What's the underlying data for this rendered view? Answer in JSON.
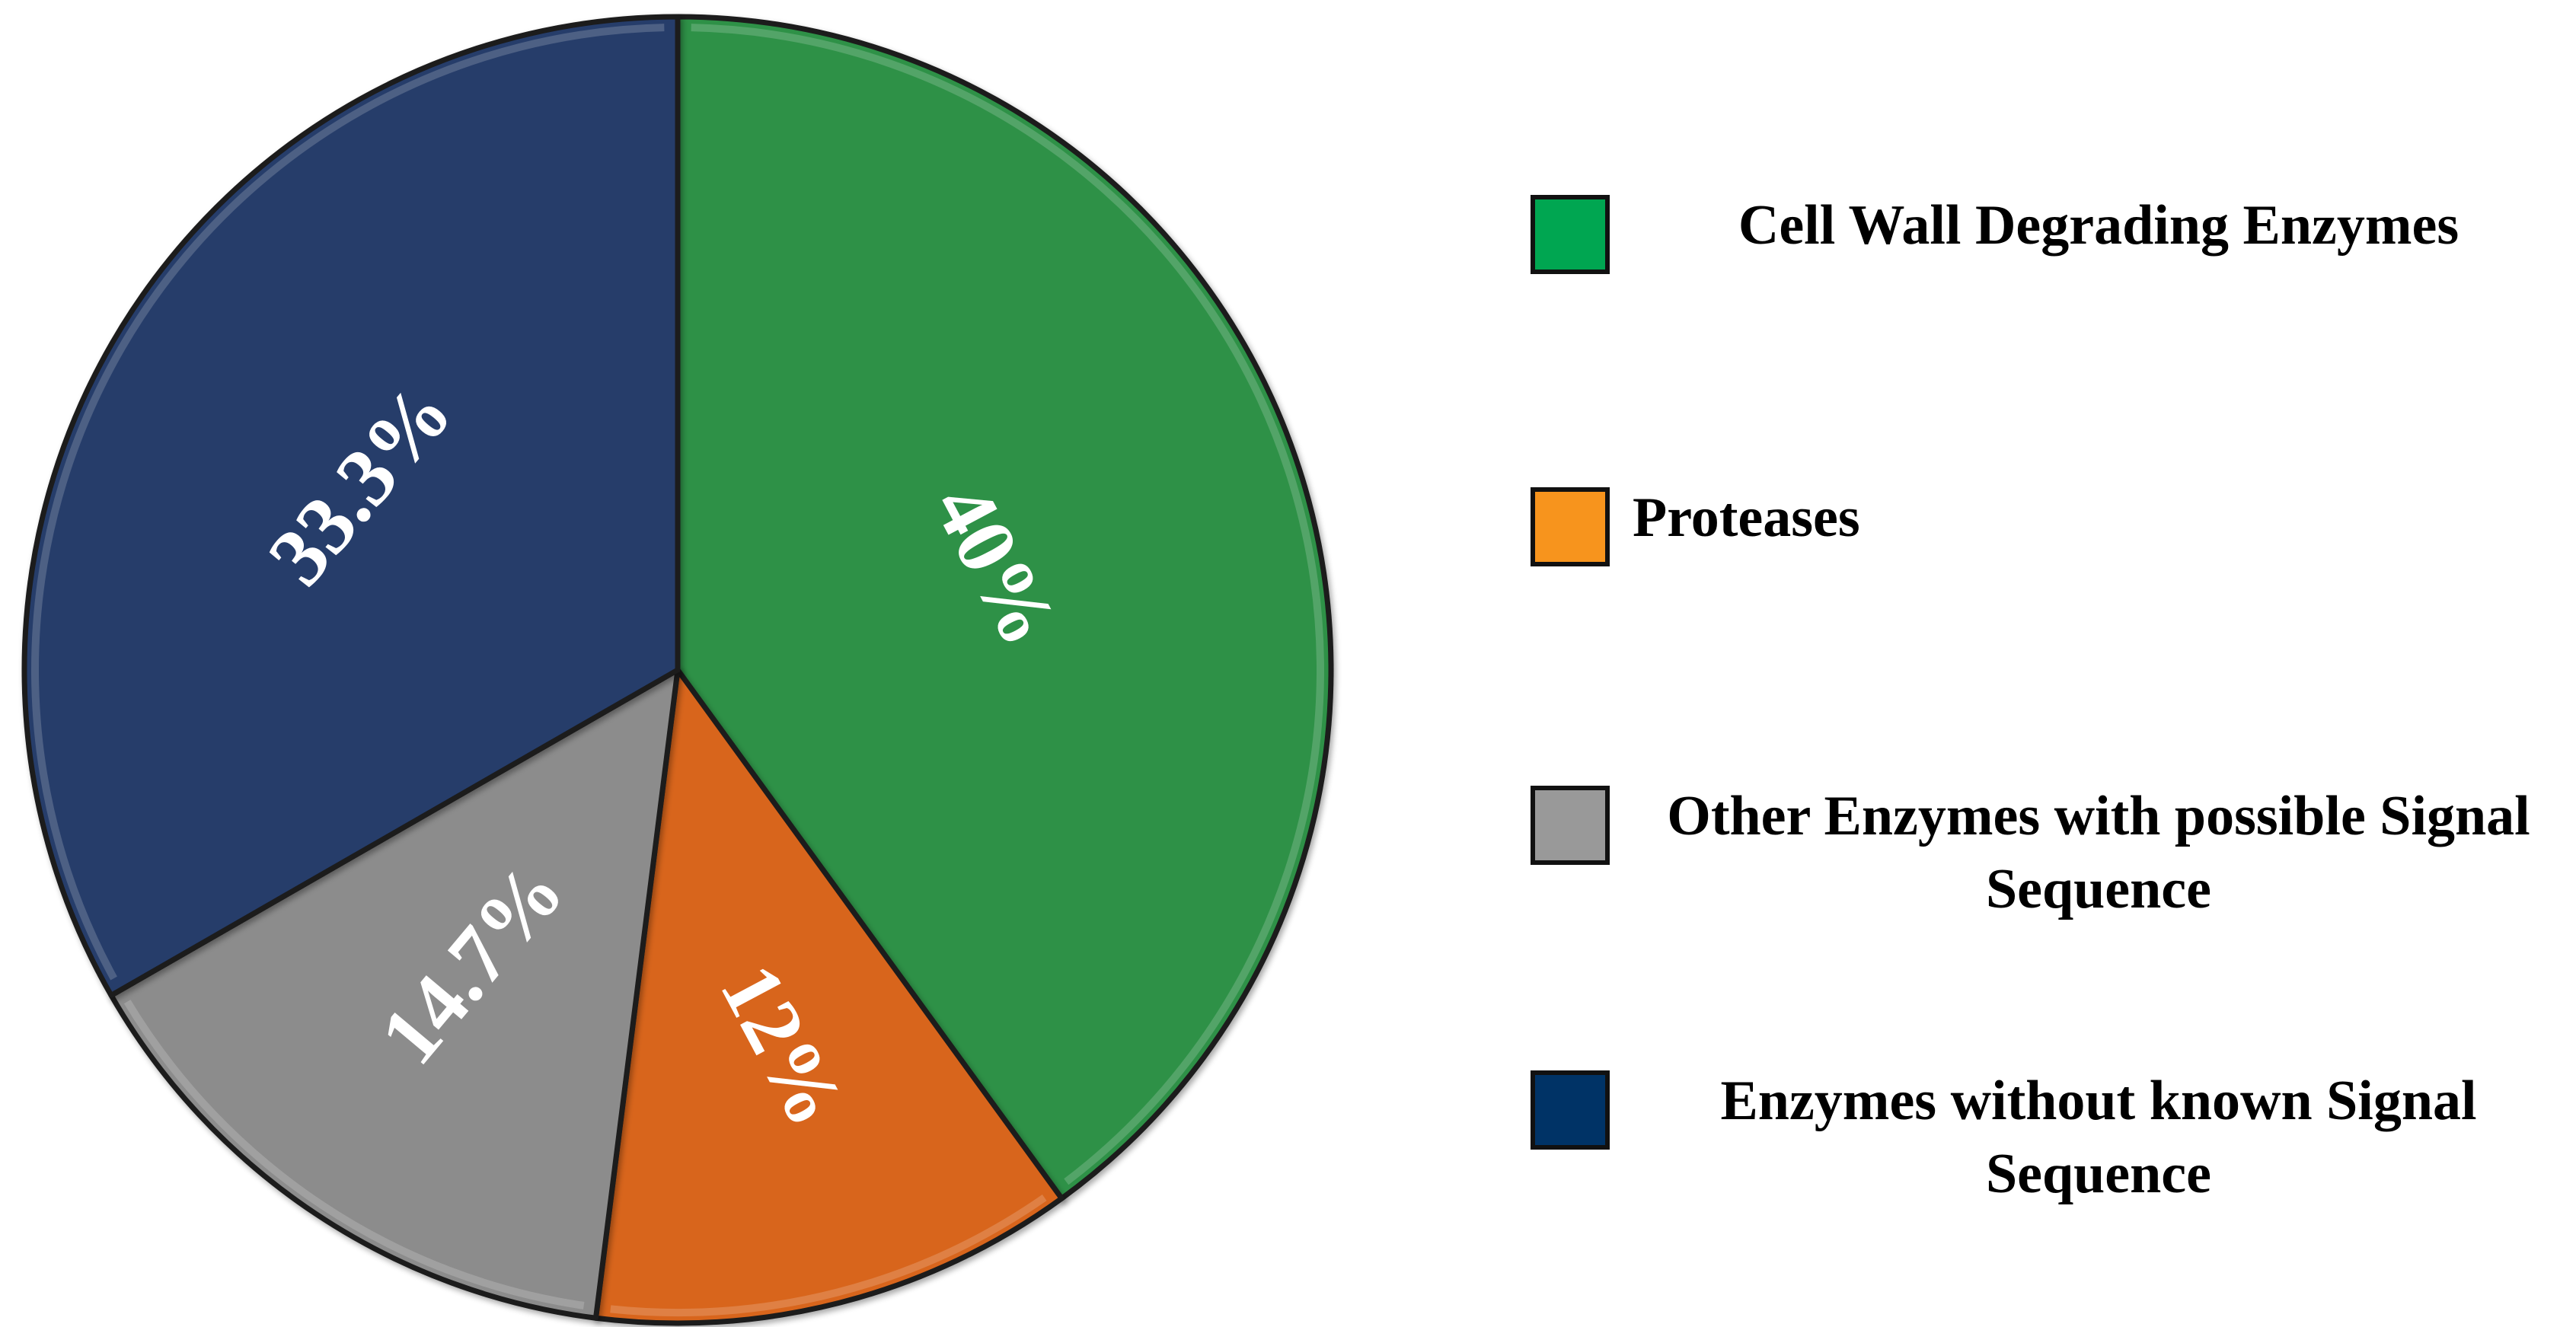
{
  "chart_data": {
    "type": "pie",
    "title": "",
    "start_angle_deg": 0,
    "direction": "clockwise",
    "slices": [
      {
        "name": "Cell Wall Degrading Enzymes",
        "value": 40,
        "label": "40%",
        "color": "#2f9146",
        "legend_color": "#00a651"
      },
      {
        "name": "Proteases",
        "value": 12,
        "label": "12%",
        "color": "#d8651b",
        "legend_color": "#f7941d"
      },
      {
        "name": "Other Enzymes with possible Signal Sequence",
        "value": 14.7,
        "label": "14.7%",
        "color": "#8c8c8c",
        "legend_color": "#999999"
      },
      {
        "name": "Enzymes without known Signal Sequence",
        "value": 33.3,
        "label": "33.3%",
        "color": "#253c6b",
        "legend_color": "#003366"
      }
    ],
    "legend_position": "right"
  },
  "legend": {
    "items": [
      {
        "line1": "Cell Wall Degrading Enzymes",
        "line2": ""
      },
      {
        "line1": "Proteases",
        "line2": ""
      },
      {
        "line1": "Other Enzymes with possible Signal",
        "line2": "Sequence"
      },
      {
        "line1": "Enzymes without known Signal",
        "line2": "Sequence"
      }
    ]
  }
}
